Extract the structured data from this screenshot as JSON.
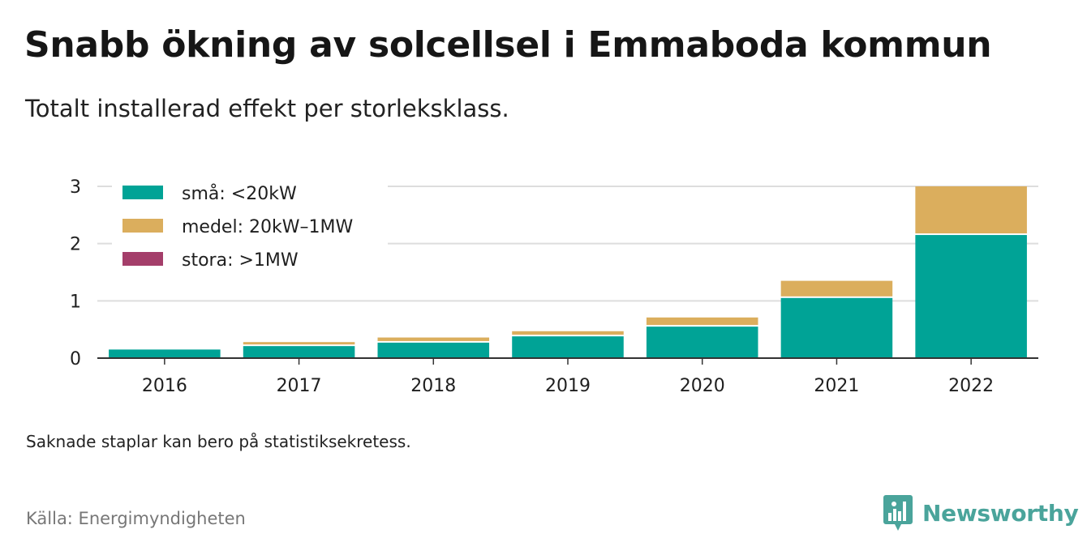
{
  "header": {
    "title": "Snabb ökning av solcellsel i Emmaboda kommun",
    "subtitle": "Totalt installerad effekt per storleksklass."
  },
  "footer": {
    "note": "Saknade staplar kan bero på statistiksekretess.",
    "source": "Källa: Energimyndigheten",
    "brand": "Newsworthy"
  },
  "colors": {
    "small": "#00a396",
    "medium": "#dbae5d",
    "large": "#a43e6a",
    "grid": "#dddddd",
    "axis": "#333333",
    "brand": "#4aa49b"
  },
  "icons": {
    "brand_logo": "newsworthy-bar-chart-speech-bubble-icon"
  },
  "chart_data": {
    "type": "bar",
    "stacked": true,
    "title": "Snabb ökning av solcellsel i Emmaboda kommun",
    "subtitle": "Totalt installerad effekt per storleksklass.",
    "xlabel": "",
    "ylabel": "",
    "categories": [
      "2016",
      "2017",
      "2018",
      "2019",
      "2020",
      "2021",
      "2022"
    ],
    "ylim": [
      0,
      3
    ],
    "yticks": [
      0,
      1,
      2,
      3
    ],
    "grid": true,
    "legend_position": "top-left",
    "series": [
      {
        "name": "små: <20kW",
        "color": "#00a396",
        "values": [
          0.15,
          0.21,
          0.27,
          0.38,
          0.55,
          1.05,
          2.15
        ]
      },
      {
        "name": "medel: 20kW–1MW",
        "color": "#dbae5d",
        "values": [
          0.0,
          0.07,
          0.09,
          0.09,
          0.16,
          0.3,
          0.85
        ]
      },
      {
        "name": "stora: >1MW",
        "color": "#a43e6a",
        "values": [
          0,
          0,
          0,
          0,
          0,
          0,
          0
        ]
      }
    ]
  }
}
